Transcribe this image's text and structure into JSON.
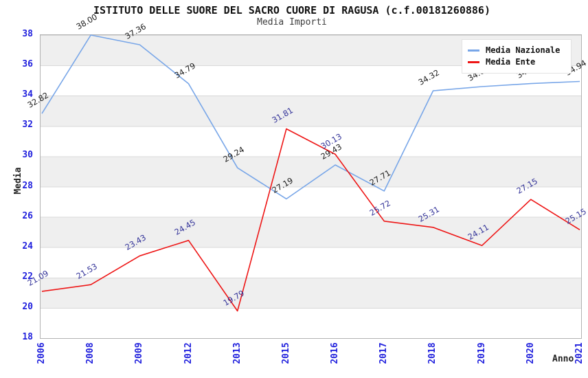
{
  "title": "ISTITUTO DELLE SUORE DEL SACRO CUORE DI RAGUSA (c.f.00181260886)",
  "subtitle": "Media Importi",
  "axes": {
    "y_title": "Media",
    "x_title": "Anno",
    "y_ticks": [
      38,
      36,
      34,
      32,
      30,
      28,
      26,
      24,
      22,
      20,
      18
    ]
  },
  "legend": [
    {
      "label": "Media Nazionale",
      "color": "#78a6e8"
    },
    {
      "label": "Media Ente",
      "color": "#ee1515"
    }
  ],
  "colors": {
    "tick_label": "#2020dd",
    "band_gray": "#efefef",
    "gridline": "#d8d8d8",
    "national_line": "#78a6e8",
    "ente_line": "#ee1515",
    "national_point_label": "#1c1c1c",
    "ente_point_label": "#333399"
  },
  "chart_data": {
    "type": "line",
    "x": [
      "2006",
      "2008",
      "2009",
      "2012",
      "2013",
      "2015",
      "2016",
      "2017",
      "2018",
      "2019",
      "2020",
      "2021"
    ],
    "series": [
      {
        "name": "Media Nazionale",
        "color": "#78a6e8",
        "label_color": "#1c1c1c",
        "values": [
          32.82,
          38.0,
          37.36,
          34.79,
          29.24,
          27.19,
          29.43,
          27.71,
          34.32,
          34.6,
          34.8,
          34.94
        ]
      },
      {
        "name": "Media Ente",
        "color": "#ee1515",
        "label_color": "#333399",
        "values": [
          21.09,
          21.53,
          23.43,
          24.45,
          19.79,
          31.81,
          30.13,
          25.72,
          25.31,
          24.11,
          27.15,
          25.15
        ]
      }
    ],
    "title": "Media Importi",
    "xlabel": "Anno",
    "ylabel": "Media",
    "ylim": [
      18,
      38
    ],
    "ytick_step": 2,
    "grid": true,
    "legend_position": "top-right-inside",
    "point_labels": "values shown rotated -30deg with 2 decimals"
  }
}
